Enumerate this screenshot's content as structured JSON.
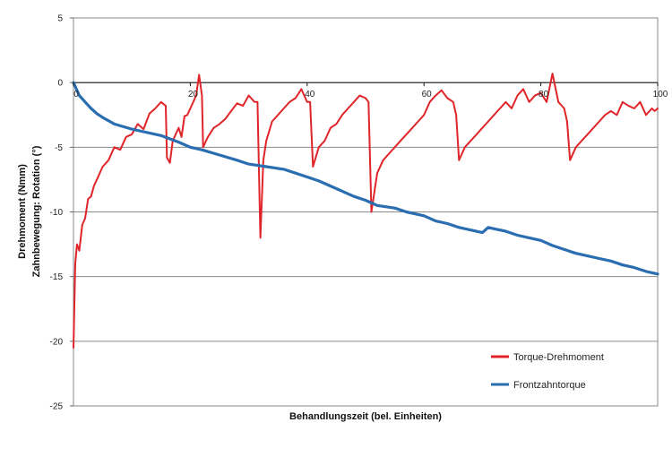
{
  "chart_data": {
    "type": "line",
    "title": "",
    "xlabel": "Behandlungszeit (bel. Einheiten)",
    "ylabel_lines": [
      "Drehmoment (Nmm)",
      "Zahnbewegung: Rotation (°)"
    ],
    "xlim": [
      0,
      100
    ],
    "ylim": [
      -25,
      5
    ],
    "x_ticks": [
      0,
      20,
      40,
      60,
      80,
      100
    ],
    "y_ticks": [
      5,
      0,
      -5,
      -10,
      -15,
      -20,
      -25
    ],
    "grid": "horizontal",
    "legend": "bottom-right",
    "series": [
      {
        "name": "Torque-Drehmoment",
        "color": "#e0252a",
        "points": [
          [
            0,
            -20.5
          ],
          [
            0.3,
            -14
          ],
          [
            0.6,
            -12.5
          ],
          [
            1,
            -13
          ],
          [
            1.5,
            -11
          ],
          [
            2,
            -10.5
          ],
          [
            2.5,
            -9
          ],
          [
            3,
            -8.8
          ],
          [
            3.5,
            -8
          ],
          [
            4,
            -7.5
          ],
          [
            5,
            -6.5
          ],
          [
            6,
            -6
          ],
          [
            7,
            -5
          ],
          [
            8,
            -5.2
          ],
          [
            9,
            -4.2
          ],
          [
            10,
            -4
          ],
          [
            11,
            -3.2
          ],
          [
            12,
            -3.6
          ],
          [
            13,
            -2.4
          ],
          [
            14,
            -2
          ],
          [
            15,
            -1.5
          ],
          [
            15.8,
            -1.8
          ],
          [
            16,
            -5.8
          ],
          [
            16.5,
            -6.2
          ],
          [
            17,
            -4.5
          ],
          [
            18,
            -3.5
          ],
          [
            18.5,
            -4.2
          ],
          [
            19,
            -2.6
          ],
          [
            19.5,
            -2.5
          ],
          [
            20,
            -2
          ],
          [
            20.5,
            -1.5
          ],
          [
            21,
            -1
          ],
          [
            21.5,
            0.6
          ],
          [
            22,
            -1
          ],
          [
            22.2,
            -5
          ],
          [
            23,
            -4.2
          ],
          [
            24,
            -3.5
          ],
          [
            25,
            -3.2
          ],
          [
            26,
            -2.8
          ],
          [
            27,
            -2.2
          ],
          [
            28,
            -1.6
          ],
          [
            29,
            -1.8
          ],
          [
            30,
            -1
          ],
          [
            31,
            -1.5
          ],
          [
            31.5,
            -1.5
          ],
          [
            32,
            -12
          ],
          [
            32.5,
            -6
          ],
          [
            33,
            -4.5
          ],
          [
            34,
            -3
          ],
          [
            35,
            -2.5
          ],
          [
            36,
            -2
          ],
          [
            37,
            -1.5
          ],
          [
            38,
            -1.2
          ],
          [
            39,
            -0.5
          ],
          [
            40,
            -1.5
          ],
          [
            40.5,
            -1.5
          ],
          [
            41,
            -6.5
          ],
          [
            42,
            -5
          ],
          [
            43,
            -4.5
          ],
          [
            44,
            -3.5
          ],
          [
            45,
            -3.2
          ],
          [
            46,
            -2.5
          ],
          [
            47,
            -2
          ],
          [
            48,
            -1.5
          ],
          [
            49,
            -1
          ],
          [
            50,
            -1.2
          ],
          [
            50.5,
            -1.5
          ],
          [
            51,
            -10
          ],
          [
            52,
            -7
          ],
          [
            53,
            -6
          ],
          [
            54,
            -5.5
          ],
          [
            55,
            -5
          ],
          [
            56,
            -4.5
          ],
          [
            57,
            -4
          ],
          [
            58,
            -3.5
          ],
          [
            59,
            -3
          ],
          [
            60,
            -2.5
          ],
          [
            61,
            -1.5
          ],
          [
            62,
            -1
          ],
          [
            63,
            -0.6
          ],
          [
            64,
            -1.2
          ],
          [
            65,
            -1.5
          ],
          [
            65.5,
            -2.5
          ],
          [
            66,
            -6
          ],
          [
            67,
            -5
          ],
          [
            68,
            -4.5
          ],
          [
            69,
            -4
          ],
          [
            70,
            -3.5
          ],
          [
            71,
            -3
          ],
          [
            72,
            -2.5
          ],
          [
            73,
            -2
          ],
          [
            74,
            -1.5
          ],
          [
            75,
            -2
          ],
          [
            76,
            -1
          ],
          [
            77,
            -0.5
          ],
          [
            78,
            -1.5
          ],
          [
            79,
            -1
          ],
          [
            80,
            -0.8
          ],
          [
            81,
            -1.5
          ],
          [
            82,
            0.7
          ],
          [
            83,
            -1.5
          ],
          [
            84,
            -2
          ],
          [
            84.5,
            -3
          ],
          [
            85,
            -6
          ],
          [
            86,
            -5
          ],
          [
            87,
            -4.5
          ],
          [
            88,
            -4
          ],
          [
            89,
            -3.5
          ],
          [
            90,
            -3
          ],
          [
            91,
            -2.5
          ],
          [
            92,
            -2.2
          ],
          [
            93,
            -2.5
          ],
          [
            94,
            -1.5
          ],
          [
            95,
            -1.8
          ],
          [
            96,
            -2
          ],
          [
            97,
            -1.5
          ],
          [
            98,
            -2.5
          ],
          [
            99,
            -2
          ],
          [
            99.5,
            -2.2
          ],
          [
            100,
            -2
          ]
        ]
      },
      {
        "name": "Frontzahntorque",
        "color": "#2a6db0",
        "points": [
          [
            0,
            0
          ],
          [
            0.5,
            -0.5
          ],
          [
            1,
            -1
          ],
          [
            2,
            -1.5
          ],
          [
            3,
            -2
          ],
          [
            4,
            -2.4
          ],
          [
            5,
            -2.7
          ],
          [
            7,
            -3.2
          ],
          [
            10,
            -3.6
          ],
          [
            12,
            -3.8
          ],
          [
            15,
            -4.1
          ],
          [
            18,
            -4.6
          ],
          [
            20,
            -5
          ],
          [
            22,
            -5.2
          ],
          [
            25,
            -5.6
          ],
          [
            28,
            -6
          ],
          [
            30,
            -6.3
          ],
          [
            33,
            -6.5
          ],
          [
            36,
            -6.7
          ],
          [
            38,
            -7
          ],
          [
            40,
            -7.3
          ],
          [
            42,
            -7.6
          ],
          [
            45,
            -8.2
          ],
          [
            48,
            -8.8
          ],
          [
            50,
            -9.1
          ],
          [
            52,
            -9.5
          ],
          [
            55,
            -9.7
          ],
          [
            57,
            -10
          ],
          [
            60,
            -10.3
          ],
          [
            62,
            -10.7
          ],
          [
            64,
            -10.9
          ],
          [
            66,
            -11.2
          ],
          [
            68,
            -11.4
          ],
          [
            70,
            -11.6
          ],
          [
            71,
            -11.2
          ],
          [
            72,
            -11.3
          ],
          [
            74,
            -11.5
          ],
          [
            76,
            -11.8
          ],
          [
            78,
            -12
          ],
          [
            80,
            -12.2
          ],
          [
            82,
            -12.6
          ],
          [
            84,
            -12.9
          ],
          [
            86,
            -13.2
          ],
          [
            88,
            -13.4
          ],
          [
            90,
            -13.6
          ],
          [
            92,
            -13.8
          ],
          [
            94,
            -14.1
          ],
          [
            96,
            -14.3
          ],
          [
            98,
            -14.6
          ],
          [
            100,
            -14.8
          ]
        ]
      }
    ]
  }
}
